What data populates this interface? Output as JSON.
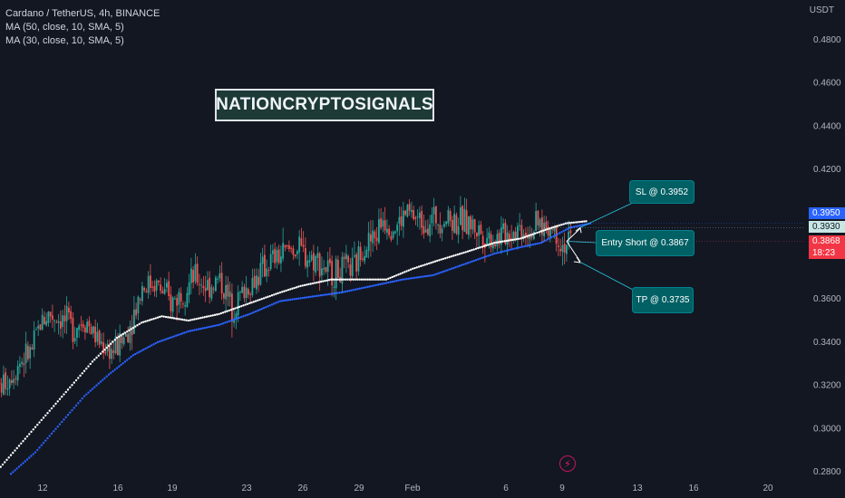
{
  "header": {
    "symbol_line": "Cardano / TetherUS, 4h, BINANCE",
    "indicator_1": "MA (50, close, 10, SMA, 5)",
    "indicator_2": "MA (30, close, 10, SMA, 5)"
  },
  "watermark": "NATIONCRYPTOSIGNALS",
  "price_axis": {
    "unit": "USDT",
    "price_tags": {
      "blue_value": "0.3950",
      "light_value": "0.3930",
      "red_value": "0.3868",
      "countdown": "18:23"
    }
  },
  "trade_labels": {
    "sl": "SL @ 0.3952",
    "entry": "Entry Short @ 0.3867",
    "tp": "TP @ 0.3735"
  },
  "colors": {
    "background": "#131722",
    "up_candle": "#26a69a",
    "down_candle": "#ef5350",
    "ma_white": "#ffffff",
    "ma_blue": "#2962ff",
    "label_bg": "#006064"
  },
  "chart_data": {
    "type": "candlestick",
    "y_axis": {
      "ticks": [
        0.28,
        0.3,
        0.32,
        0.34,
        0.36,
        0.38,
        0.4,
        0.42,
        0.44,
        0.46,
        0.48
      ],
      "range": [
        0.278,
        0.501
      ]
    },
    "x_axis": {
      "ticks": [
        "12",
        "16",
        "19",
        "23",
        "26",
        "29",
        "Feb",
        "6",
        "9",
        "13",
        "16",
        "20"
      ]
    },
    "ma_white_anchors": [
      [
        0,
        0.279
      ],
      [
        12,
        0.292
      ],
      [
        24,
        0.305
      ],
      [
        36,
        0.318
      ],
      [
        48,
        0.331
      ],
      [
        60,
        0.342
      ],
      [
        72,
        0.349
      ],
      [
        82,
        0.352
      ],
      [
        95,
        0.35
      ],
      [
        110,
        0.353
      ],
      [
        125,
        0.358
      ],
      [
        140,
        0.363
      ],
      [
        150,
        0.366
      ],
      [
        165,
        0.369
      ],
      [
        178,
        0.369
      ],
      [
        192,
        0.369
      ],
      [
        205,
        0.374
      ],
      [
        218,
        0.378
      ],
      [
        232,
        0.382
      ],
      [
        245,
        0.386
      ],
      [
        258,
        0.388
      ],
      [
        270,
        0.392
      ],
      [
        280,
        0.395
      ],
      [
        290,
        0.396
      ]
    ],
    "ma_blue_anchors": [
      [
        8,
        0.279
      ],
      [
        20,
        0.289
      ],
      [
        32,
        0.302
      ],
      [
        44,
        0.315
      ],
      [
        56,
        0.325
      ],
      [
        68,
        0.334
      ],
      [
        80,
        0.34
      ],
      [
        95,
        0.345
      ],
      [
        110,
        0.348
      ],
      [
        125,
        0.353
      ],
      [
        140,
        0.359
      ],
      [
        155,
        0.361
      ],
      [
        170,
        0.363
      ],
      [
        185,
        0.366
      ],
      [
        200,
        0.369
      ],
      [
        215,
        0.371
      ],
      [
        230,
        0.376
      ],
      [
        245,
        0.381
      ],
      [
        258,
        0.384
      ],
      [
        268,
        0.386
      ],
      [
        282,
        0.393
      ],
      [
        292,
        0.395
      ]
    ],
    "close_anchors": [
      [
        0,
        0.317
      ],
      [
        6,
        0.323
      ],
      [
        12,
        0.331
      ],
      [
        18,
        0.336
      ],
      [
        22,
        0.349
      ],
      [
        26,
        0.353
      ],
      [
        32,
        0.351
      ],
      [
        38,
        0.347
      ],
      [
        44,
        0.351
      ],
      [
        50,
        0.341
      ],
      [
        54,
        0.338
      ],
      [
        58,
        0.336
      ],
      [
        62,
        0.34
      ],
      [
        66,
        0.348
      ],
      [
        72,
        0.366
      ],
      [
        78,
        0.368
      ],
      [
        86,
        0.358
      ],
      [
        92,
        0.364
      ],
      [
        98,
        0.37
      ],
      [
        104,
        0.366
      ],
      [
        110,
        0.369
      ],
      [
        116,
        0.356
      ],
      [
        122,
        0.364
      ],
      [
        128,
        0.37
      ],
      [
        134,
        0.377
      ],
      [
        140,
        0.38
      ],
      [
        146,
        0.384
      ],
      [
        152,
        0.38
      ],
      [
        158,
        0.378
      ],
      [
        164,
        0.372
      ],
      [
        170,
        0.373
      ],
      [
        176,
        0.374
      ],
      [
        180,
        0.385
      ],
      [
        186,
        0.388
      ],
      [
        190,
        0.398
      ],
      [
        196,
        0.393
      ],
      [
        202,
        0.4
      ],
      [
        208,
        0.396
      ],
      [
        214,
        0.397
      ],
      [
        220,
        0.398
      ],
      [
        226,
        0.396
      ],
      [
        232,
        0.395
      ],
      [
        238,
        0.391
      ],
      [
        244,
        0.388
      ],
      [
        250,
        0.39
      ],
      [
        256,
        0.393
      ],
      [
        262,
        0.392
      ],
      [
        268,
        0.394
      ],
      [
        274,
        0.392
      ],
      [
        278,
        0.385
      ],
      [
        282,
        0.387
      ]
    ],
    "price_lines": [
      0.395,
      0.393,
      0.3868
    ]
  }
}
